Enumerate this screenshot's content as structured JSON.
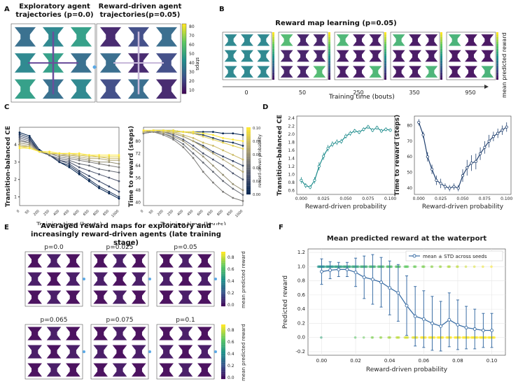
{
  "panels": {
    "A": {
      "label": "A",
      "titles": [
        "Exploratory agent\ntrajectories (p=0.0)",
        "Reward-driven agent\ntrajectories(p=0.05)"
      ],
      "colorbar": {
        "label": "steps",
        "ticks": [
          "80",
          "70",
          "60",
          "50",
          "40",
          "30",
          "20",
          "10"
        ]
      }
    },
    "B": {
      "label": "B",
      "title": "Reward map learning  (p=0.05)",
      "xlabel": "Training time (bouts)",
      "ticks": [
        "0",
        "50",
        "250",
        "350",
        "950"
      ],
      "colorbar_label": "mean predicted reward"
    },
    "C": {
      "label": "C"
    },
    "D": {
      "label": "D"
    },
    "E": {
      "label": "E",
      "title": "Averaged reward maps for exploratory and\nincreasingly reward-driven agents (late training stage)",
      "map_titles": [
        "p=0.0",
        "p=0.025",
        "p=0.05",
        "p=0.065",
        "p=0.075",
        "p=0.1"
      ],
      "colorbar_label": "mean predicted reward",
      "colorbar_ticks": [
        "0.8",
        "0.6",
        "0.4",
        "0.2",
        "0.0"
      ]
    },
    "F": {
      "label": "F"
    }
  },
  "chart_data": [
    {
      "id": "C-left",
      "type": "line",
      "xlabel": "Training time (bouts)",
      "ylabel": "Transition-balanced CE",
      "x": [
        0,
        50,
        200,
        250,
        400,
        450,
        600,
        650,
        800,
        850,
        1000
      ],
      "x_ticklabels": [
        "0",
        "50",
        "200",
        "250",
        "400",
        "450",
        "600",
        "650",
        "800",
        "850",
        "1000"
      ],
      "yticks": [
        1,
        2,
        3,
        4
      ],
      "ylim": [
        0.5,
        5.0
      ],
      "color_by": "reward-driven probability",
      "series": [
        {
          "p": 0.0,
          "values": [
            4.7,
            4.5,
            3.7,
            3.4,
            3.0,
            2.7,
            2.3,
            1.9,
            1.5,
            1.2,
            0.9
          ]
        },
        {
          "p": 0.01,
          "values": [
            4.6,
            4.4,
            3.6,
            3.4,
            3.0,
            2.8,
            2.4,
            2.0,
            1.6,
            1.3,
            1.0
          ]
        },
        {
          "p": 0.02,
          "values": [
            4.5,
            4.3,
            3.6,
            3.4,
            3.1,
            2.9,
            2.5,
            2.2,
            1.9,
            1.6,
            1.3
          ]
        },
        {
          "p": 0.03,
          "values": [
            4.4,
            4.2,
            3.6,
            3.4,
            3.1,
            3.0,
            2.7,
            2.5,
            2.3,
            2.1,
            1.9
          ]
        },
        {
          "p": 0.04,
          "values": [
            4.3,
            4.1,
            3.6,
            3.4,
            3.2,
            3.1,
            2.9,
            2.8,
            2.6,
            2.5,
            2.4
          ]
        },
        {
          "p": 0.05,
          "values": [
            4.2,
            4.1,
            3.6,
            3.5,
            3.3,
            3.2,
            3.1,
            3.0,
            2.9,
            2.8,
            2.7
          ]
        },
        {
          "p": 0.06,
          "values": [
            4.1,
            4.0,
            3.6,
            3.5,
            3.4,
            3.3,
            3.2,
            3.1,
            3.0,
            3.0,
            2.9
          ]
        },
        {
          "p": 0.07,
          "values": [
            4.0,
            3.9,
            3.6,
            3.5,
            3.4,
            3.4,
            3.3,
            3.2,
            3.2,
            3.1,
            3.1
          ]
        },
        {
          "p": 0.08,
          "values": [
            3.9,
            3.9,
            3.6,
            3.5,
            3.5,
            3.4,
            3.4,
            3.3,
            3.3,
            3.2,
            3.2
          ]
        },
        {
          "p": 0.09,
          "values": [
            3.9,
            3.8,
            3.6,
            3.5,
            3.5,
            3.5,
            3.4,
            3.4,
            3.3,
            3.3,
            3.3
          ]
        },
        {
          "p": 0.1,
          "values": [
            3.8,
            3.8,
            3.6,
            3.6,
            3.5,
            3.5,
            3.5,
            3.4,
            3.4,
            3.4,
            3.4
          ]
        }
      ]
    },
    {
      "id": "C-right",
      "type": "line",
      "xlabel": "Training time (bouts)",
      "ylabel": "Time to reward (steps)",
      "x": [
        0,
        50,
        200,
        250,
        400,
        450,
        600,
        650,
        800,
        850,
        1000
      ],
      "x_ticklabels": [
        "0",
        "50",
        "200",
        "250",
        "400",
        "450",
        "600",
        "650",
        "800",
        "850",
        "1000"
      ],
      "yticks": [
        40,
        48,
        56,
        64,
        72,
        80
      ],
      "ylim": [
        38,
        89
      ],
      "colorbar": {
        "label": "reward-driven probability",
        "ticks": [
          "0.10",
          "0.08",
          "0.06",
          "0.04",
          "0.02",
          "0.00"
        ],
        "range": [
          0.0,
          0.1
        ]
      },
      "series": [
        {
          "p": 0.0,
          "values": [
            86,
            87,
            87,
            87,
            86,
            86,
            86,
            86,
            85,
            85,
            84
          ]
        },
        {
          "p": 0.01,
          "values": [
            86,
            87,
            87,
            86,
            86,
            85,
            84,
            82,
            80,
            79,
            77
          ]
        },
        {
          "p": 0.02,
          "values": [
            86,
            87,
            86,
            85,
            83,
            80,
            77,
            73,
            70,
            67,
            64
          ]
        },
        {
          "p": 0.03,
          "values": [
            86,
            86,
            86,
            84,
            81,
            77,
            72,
            68,
            64,
            59,
            55
          ]
        },
        {
          "p": 0.04,
          "values": [
            85,
            86,
            85,
            82,
            78,
            72,
            66,
            60,
            54,
            49,
            45
          ]
        },
        {
          "p": 0.05,
          "values": [
            85,
            86,
            84,
            81,
            76,
            69,
            60,
            53,
            47,
            43,
            41
          ]
        },
        {
          "p": 0.06,
          "values": [
            86,
            86,
            85,
            83,
            80,
            75,
            70,
            64,
            58,
            52,
            48
          ]
        },
        {
          "p": 0.07,
          "values": [
            86,
            87,
            86,
            85,
            83,
            80,
            76,
            72,
            68,
            64,
            60
          ]
        },
        {
          "p": 0.08,
          "values": [
            86,
            87,
            86,
            86,
            84,
            82,
            79,
            77,
            74,
            71,
            68
          ]
        },
        {
          "p": 0.09,
          "values": [
            87,
            87,
            87,
            86,
            86,
            85,
            83,
            81,
            79,
            77,
            75
          ]
        },
        {
          "p": 0.1,
          "values": [
            87,
            87,
            87,
            87,
            86,
            86,
            85,
            84,
            82,
            81,
            80
          ]
        }
      ]
    },
    {
      "id": "D-left",
      "type": "line",
      "xlabel": "Reward-driven probability",
      "ylabel": "Transition-balanced CE",
      "color": "#1a8a8a",
      "xlim": [
        -0.005,
        0.105
      ],
      "ylim": [
        0.5,
        2.45
      ],
      "xticks": [
        "0.000",
        "0.025",
        "0.050",
        "0.075",
        "0.100"
      ],
      "yticks": [
        "0.6",
        "0.8",
        "1.0",
        "1.2",
        "1.4",
        "1.6",
        "1.8",
        "2.0",
        "2.2",
        "2.4"
      ],
      "x": [
        0.0,
        0.005,
        0.01,
        0.015,
        0.02,
        0.025,
        0.03,
        0.035,
        0.04,
        0.045,
        0.05,
        0.055,
        0.06,
        0.065,
        0.07,
        0.075,
        0.08,
        0.085,
        0.09,
        0.095,
        0.1
      ],
      "values": [
        0.85,
        0.72,
        0.68,
        0.85,
        1.2,
        1.45,
        1.65,
        1.75,
        1.8,
        1.82,
        1.95,
        2.02,
        2.08,
        2.05,
        2.12,
        2.18,
        2.1,
        2.16,
        2.08,
        2.12,
        2.1
      ],
      "err": [
        0.08,
        0.06,
        0.05,
        0.08,
        0.1,
        0.09,
        0.08,
        0.07,
        0.07,
        0.06,
        0.06,
        0.06,
        0.05,
        0.05,
        0.05,
        0.05,
        0.05,
        0.05,
        0.05,
        0.05,
        0.04
      ]
    },
    {
      "id": "D-right",
      "type": "line",
      "xlabel": "Reward-driven probability",
      "ylabel": "Time to reward (steps)",
      "color": "#1f3f6e",
      "xlim": [
        -0.005,
        0.105
      ],
      "ylim": [
        36,
        86
      ],
      "xticks": [
        "0.000",
        "0.025",
        "0.050",
        "0.075",
        "0.100"
      ],
      "yticks": [
        "40",
        "50",
        "60",
        "70",
        "80"
      ],
      "x": [
        0.0,
        0.005,
        0.01,
        0.015,
        0.02,
        0.025,
        0.03,
        0.035,
        0.04,
        0.045,
        0.05,
        0.055,
        0.06,
        0.065,
        0.07,
        0.075,
        0.08,
        0.085,
        0.09,
        0.095,
        0.1
      ],
      "values": [
        82,
        74,
        60,
        52,
        45,
        43,
        41,
        40,
        41,
        40,
        48,
        53,
        56,
        57,
        62,
        66,
        70,
        73,
        75,
        77,
        79
      ],
      "err": [
        2,
        2,
        3,
        3,
        3,
        3,
        2,
        2,
        2,
        2,
        4,
        5,
        5,
        5,
        4,
        4,
        4,
        3,
        3,
        3,
        3
      ]
    },
    {
      "id": "F",
      "type": "scatter",
      "title": "Mean predicted reward at the waterport",
      "xlabel": "Reward-driven probability",
      "ylabel": "Predicted reward",
      "legend": "mean ± STD across seeds",
      "legend_position": "top-right",
      "xlim": [
        -0.008,
        0.108
      ],
      "ylim": [
        -0.25,
        1.25
      ],
      "xticks": [
        "0.00",
        "0.02",
        "0.04",
        "0.06",
        "0.08",
        "0.10"
      ],
      "yticks": [
        "-0.2",
        "0.0",
        "0.2",
        "0.4",
        "0.6",
        "0.8",
        "1.0",
        "1.2"
      ],
      "x": [
        0.0,
        0.005,
        0.01,
        0.015,
        0.02,
        0.025,
        0.03,
        0.035,
        0.04,
        0.045,
        0.05,
        0.055,
        0.06,
        0.065,
        0.07,
        0.075,
        0.08,
        0.085,
        0.09,
        0.095,
        0.1
      ],
      "mean": [
        0.93,
        0.95,
        0.96,
        0.96,
        0.92,
        0.85,
        0.82,
        0.78,
        0.7,
        0.63,
        0.45,
        0.3,
        0.26,
        0.2,
        0.16,
        0.25,
        0.18,
        0.14,
        0.12,
        0.1,
        0.1
      ],
      "std": [
        0.18,
        0.12,
        0.1,
        0.1,
        0.2,
        0.3,
        0.35,
        0.35,
        0.38,
        0.4,
        0.42,
        0.42,
        0.4,
        0.38,
        0.35,
        0.38,
        0.35,
        0.3,
        0.28,
        0.24,
        0.24
      ]
    }
  ]
}
